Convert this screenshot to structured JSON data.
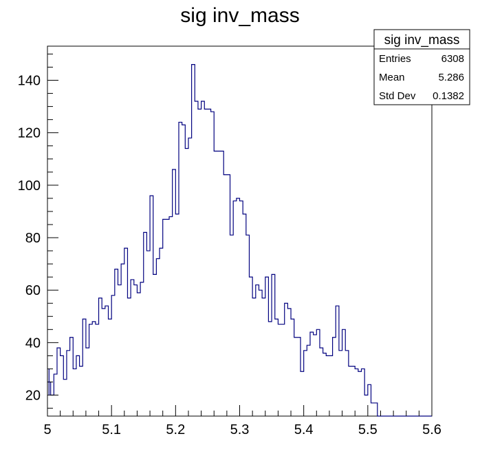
{
  "chart_data": {
    "type": "bar",
    "style": "step-histogram",
    "title": "sig inv_mass",
    "xlabel": "",
    "ylabel": "",
    "xlim": [
      5.0,
      5.6
    ],
    "ylim": [
      12,
      153
    ],
    "grid": false,
    "legend": "none",
    "line_color": "#00007f",
    "x_ticks": [
      5.0,
      5.1,
      5.2,
      5.3,
      5.4,
      5.5,
      5.6
    ],
    "x_tick_labels": [
      "5",
      "5.1",
      "5.2",
      "5.3",
      "5.4",
      "5.5",
      "5.6"
    ],
    "y_ticks": [
      20,
      40,
      60,
      80,
      100,
      120,
      140
    ],
    "y_tick_labels": [
      "20",
      "40",
      "60",
      "80",
      "100",
      "120",
      "140"
    ],
    "bin_edges_range": [
      5.0,
      5.6
    ],
    "bin_count": 120,
    "values": [
      25,
      20,
      28,
      38,
      35,
      26,
      37,
      42,
      30,
      35,
      31,
      49,
      38,
      47,
      48,
      47,
      57,
      53,
      54,
      49,
      58,
      68,
      62,
      70,
      76,
      57,
      64,
      62,
      59,
      63,
      82,
      75,
      96,
      66,
      72,
      76,
      87,
      87,
      88,
      106,
      89,
      124,
      123,
      114,
      118,
      146,
      132,
      129,
      132,
      129,
      129,
      128,
      113,
      113,
      113,
      104,
      104,
      81,
      94,
      95,
      94,
      89,
      81,
      65,
      57,
      62,
      60,
      57,
      65,
      48,
      66,
      49,
      47,
      47,
      55,
      53,
      49,
      42,
      42,
      29,
      37,
      39,
      44,
      43,
      45,
      38,
      36,
      35,
      35,
      42,
      54,
      37,
      45,
      37,
      31,
      31,
      30,
      29,
      30,
      20,
      24,
      17,
      17,
      12,
      12,
      12,
      12,
      12,
      12,
      12,
      12,
      12,
      12,
      12,
      12,
      12,
      12,
      12,
      12,
      12
    ]
  },
  "stats_box": {
    "title": "sig inv_mass",
    "rows": [
      {
        "label": "Entries",
        "value": "6308"
      },
      {
        "label": "Mean",
        "value": "5.286"
      },
      {
        "label": "Std Dev",
        "value": "0.1382"
      }
    ]
  }
}
